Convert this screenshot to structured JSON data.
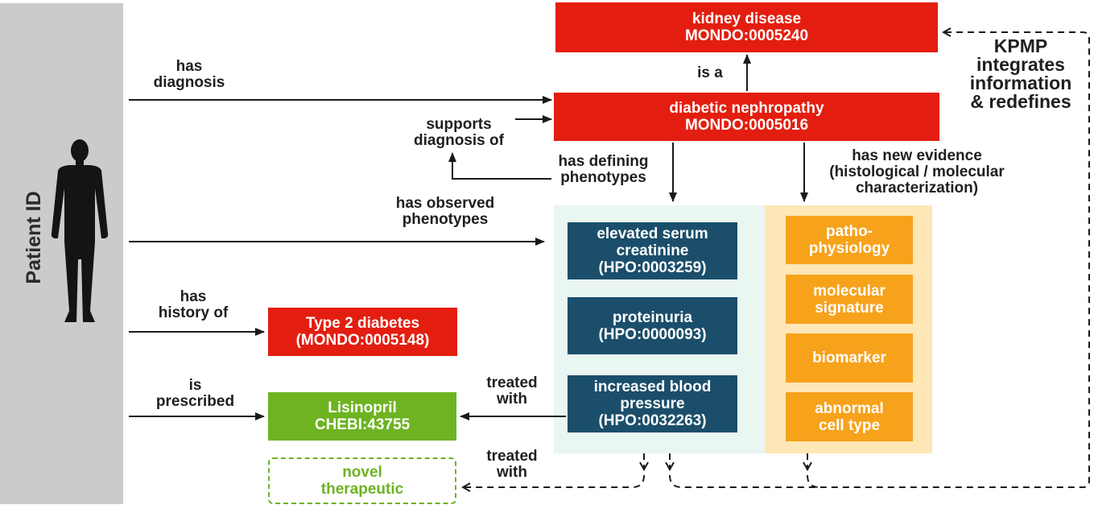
{
  "patient": {
    "label": "Patient ID",
    "icon": "person-silhouette-icon"
  },
  "nodes": {
    "kidney_disease": {
      "line1": "kidney disease",
      "line2": "MONDO:0005240"
    },
    "diabetic_nephropathy": {
      "line1": "diabetic nephropathy",
      "line2": "MONDO:0005016"
    },
    "type2_diabetes": {
      "line1": "Type 2 diabetes",
      "line2": "(MONDO:0005148)"
    },
    "lisinopril": {
      "line1": "Lisinopril",
      "line2": "CHEBI:43755"
    },
    "novel_therapeutic": {
      "line1": "novel",
      "line2": "therapeutic"
    },
    "creatinine": {
      "line1": "elevated serum",
      "line2": "creatinine",
      "line3": "(HPO:0003259)"
    },
    "proteinuria": {
      "line1": "proteinuria",
      "line2": "(HPO:0000093)"
    },
    "blood_pressure": {
      "line1": "increased blood",
      "line2": "pressure",
      "line3": "(HPO:0032263)"
    },
    "pathophysiology": {
      "line1": "patho-",
      "line2": "physiology"
    },
    "molecular_signature": {
      "line1": "molecular",
      "line2": "signature"
    },
    "biomarker": {
      "line1": "biomarker"
    },
    "abnormal_cell_type": {
      "line1": "abnormal",
      "line2": "cell type"
    }
  },
  "edges": {
    "has_diagnosis": {
      "line1": "has",
      "line2": "diagnosis"
    },
    "is_a": "is a",
    "supports_diagnosis": {
      "line1": "supports",
      "line2": "diagnosis of"
    },
    "has_defining_phenotypes": {
      "line1": "has defining",
      "line2": "phenotypes"
    },
    "has_new_evidence": {
      "line1": "has new evidence",
      "line2": "(histological / molecular",
      "line3": "characterization)"
    },
    "has_observed_phenotypes": {
      "line1": "has observed",
      "line2": "phenotypes"
    },
    "has_history_of": {
      "line1": "has",
      "line2": "history of"
    },
    "is_prescribed": {
      "line1": "is",
      "line2": "prescribed"
    },
    "treated_with_1": {
      "line1": "treated",
      "line2": "with"
    },
    "treated_with_2": {
      "line1": "treated",
      "line2": "with"
    }
  },
  "kpmp": {
    "line1": "KPMP",
    "line2": "integrates",
    "line3": "information",
    "line4": "& redefines"
  },
  "colors": {
    "disease_red": "#e31e10",
    "phenotype_navy": "#1b4e6b",
    "drug_green": "#6db322",
    "evidence_orange": "#f7a21b",
    "phenotype_panel": "#e9f6f2",
    "evidence_panel": "#fde7b6",
    "patient_bar": "#c9cbcc"
  }
}
